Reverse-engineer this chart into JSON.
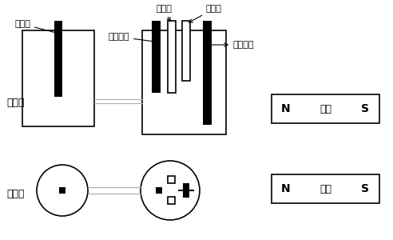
{
  "bg_color": "#ffffff",
  "line_color": "#000000",
  "gray_color": "#aaaaaa",
  "font_size_label": 9,
  "font_size_annot": 8,
  "front_view_label": "正视图",
  "top_view_label": "俦视图",
  "magnet_label": "磁铁",
  "N_label": "N",
  "S_label": "S",
  "ann_counter": "对电极",
  "ann_reference": "参比电极",
  "ann_gasout": "出气孔",
  "ann_gasin": "进气孔",
  "ann_working": "工作电极"
}
